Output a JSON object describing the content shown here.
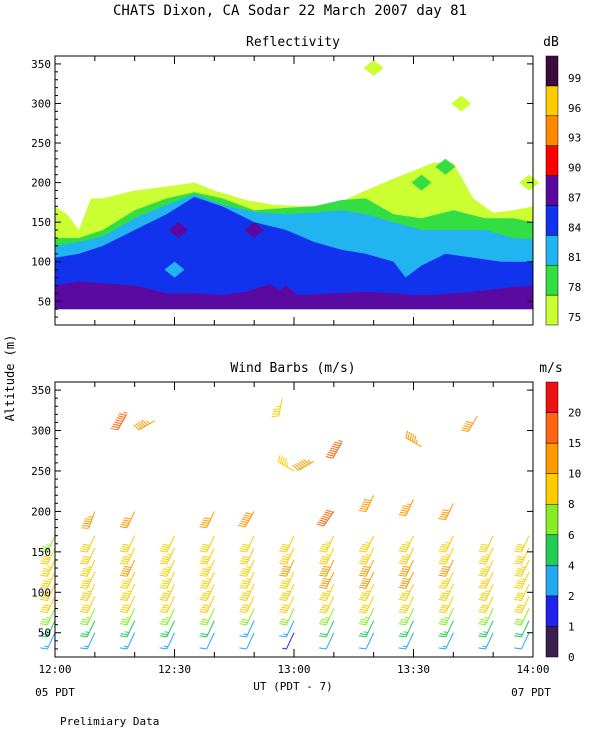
{
  "page": {
    "title": "CHATS Dixon, CA  Sodar  22 March 2007  day  81",
    "footnote": "Prelimiary Data"
  },
  "colors": {
    "background": "#ffffff",
    "axis": "#000000"
  },
  "chart_data": [
    {
      "type": "heatmap",
      "title": "Reflectivity",
      "xlabel": "UT  (PDT - 7)",
      "ylabel": "Altitude (m)",
      "xlim": [
        0,
        120
      ],
      "ylim": [
        20,
        360
      ],
      "x_tick_labels": [
        "12:00",
        "12:30",
        "13:00",
        "13:30",
        "14:00"
      ],
      "x_tick_minutes": [
        0,
        30,
        60,
        90,
        120
      ],
      "y_ticks": [
        50,
        100,
        150,
        200,
        250,
        300,
        350
      ],
      "colorbar": {
        "unit": "dB",
        "levels": [
          75,
          78,
          81,
          84,
          87,
          90,
          93,
          96,
          99
        ],
        "colors": [
          "#ccff33",
          "#33dd44",
          "#22b4f0",
          "#1133ee",
          "#5a0aa0",
          "#ff0000",
          "#ff8c00",
          "#ffcc00",
          "#3c0a3c"
        ]
      },
      "layers": [
        {
          "level": 75,
          "top_minutes": [
            0,
            3,
            6,
            9,
            12,
            20,
            28,
            35,
            40,
            48,
            55,
            62,
            70,
            78,
            85,
            90,
            95,
            100,
            105,
            110,
            115,
            120
          ],
          "top_altitude": [
            170,
            160,
            140,
            180,
            180,
            190,
            195,
            200,
            190,
            178,
            172,
            170,
            172,
            190,
            205,
            215,
            225,
            225,
            180,
            162,
            165,
            170
          ]
        },
        {
          "level": 78,
          "top_minutes": [
            0,
            6,
            12,
            20,
            28,
            35,
            42,
            50,
            58,
            65,
            72,
            78,
            85,
            92,
            100,
            108,
            115,
            120
          ],
          "top_altitude": [
            130,
            130,
            140,
            165,
            180,
            188,
            180,
            165,
            168,
            170,
            178,
            180,
            160,
            155,
            165,
            155,
            155,
            150
          ]
        },
        {
          "level": 81,
          "top_minutes": [
            0,
            6,
            12,
            20,
            28,
            35,
            42,
            50,
            58,
            65,
            72,
            78,
            85,
            92,
            100,
            108,
            115,
            120
          ],
          "top_altitude": [
            120,
            125,
            132,
            155,
            172,
            185,
            172,
            163,
            160,
            162,
            165,
            160,
            150,
            140,
            140,
            140,
            130,
            128
          ]
        },
        {
          "level": 84,
          "top_minutes": [
            0,
            6,
            12,
            20,
            28,
            35,
            42,
            50,
            58,
            65,
            72,
            78,
            85,
            88,
            92,
            98,
            105,
            112,
            120
          ],
          "top_altitude": [
            105,
            110,
            120,
            140,
            160,
            182,
            170,
            150,
            140,
            125,
            115,
            110,
            100,
            80,
            95,
            110,
            105,
            100,
            100
          ]
        },
        {
          "level": 87,
          "top_minutes": [
            0,
            6,
            14,
            20,
            28,
            35,
            42,
            48,
            54,
            58,
            62,
            70,
            78,
            85,
            90,
            95,
            100,
            105,
            110,
            115,
            120
          ],
          "top_altitude": [
            70,
            75,
            72,
            70,
            60,
            60,
            58,
            62,
            72,
            60,
            58,
            60,
            62,
            60,
            58,
            58,
            60,
            62,
            65,
            68,
            70
          ]
        }
      ],
      "small_patches": [
        {
          "level": 87,
          "center_minute": 31,
          "center_altitude": 140
        },
        {
          "level": 87,
          "center_minute": 50,
          "center_altitude": 140
        },
        {
          "level": 87,
          "center_minute": 58,
          "center_altitude": 60
        },
        {
          "level": 75,
          "center_minute": 80,
          "center_altitude": 345
        },
        {
          "level": 75,
          "center_minute": 102,
          "center_altitude": 300
        },
        {
          "level": 75,
          "center_minute": 119,
          "center_altitude": 200
        },
        {
          "level": 78,
          "center_minute": 92,
          "center_altitude": 200
        },
        {
          "level": 78,
          "center_minute": 98,
          "center_altitude": 220
        },
        {
          "level": 81,
          "center_minute": 30,
          "center_altitude": 90
        }
      ]
    },
    {
      "type": "scatter",
      "title": "Wind Barbs (m/s)",
      "xlabel": "UT  (PDT - 7)",
      "ylabel": "Altitude (m)",
      "xlim": [
        0,
        120
      ],
      "ylim": [
        20,
        360
      ],
      "x_tick_labels": [
        "12:00",
        "12:30",
        "13:00",
        "13:30",
        "14:00"
      ],
      "x_tick_minutes": [
        0,
        30,
        60,
        90,
        120
      ],
      "x_start_label": "05 PDT",
      "x_end_label": "07 PDT",
      "y_ticks": [
        50,
        100,
        150,
        200,
        250,
        300,
        350
      ],
      "colorbar": {
        "unit": "m/s",
        "levels": [
          0,
          1,
          2,
          4,
          6,
          8,
          10,
          15,
          20
        ],
        "colors": [
          "#3c1e50",
          "#2222ee",
          "#22aaf0",
          "#22cc55",
          "#88ee22",
          "#ffcc00",
          "#ff9900",
          "#ff6611",
          "#ee1111"
        ]
      },
      "profile_minutes": [
        0,
        10,
        20,
        30,
        40,
        50,
        60,
        70,
        80,
        90,
        100,
        110,
        119
      ],
      "profile_altitudes": [
        50,
        65,
        80,
        95,
        110,
        125,
        140,
        155,
        170
      ],
      "profile_direction_deg": 205,
      "profile_speed_ms": [
        [
          3,
          5,
          7,
          8,
          8,
          9,
          9,
          8,
          7
        ],
        [
          3,
          5,
          7,
          8,
          9,
          9,
          9,
          8,
          8
        ],
        [
          3,
          5,
          7,
          8,
          9,
          9,
          10,
          9,
          8
        ],
        [
          3,
          5,
          7,
          8,
          9,
          9,
          9,
          9,
          8
        ],
        [
          2,
          4,
          6,
          8,
          9,
          9,
          9,
          8,
          8
        ],
        [
          2,
          3,
          6,
          8,
          9,
          9,
          9,
          8,
          8
        ],
        [
          1,
          3,
          6,
          8,
          9,
          9,
          10,
          9,
          8
        ],
        [
          2,
          4,
          7,
          8,
          9,
          10,
          10,
          9,
          9
        ],
        [
          2,
          5,
          7,
          8,
          9,
          10,
          10,
          9,
          9
        ],
        [
          3,
          5,
          7,
          8,
          9,
          10,
          10,
          9,
          9
        ],
        [
          3,
          5,
          7,
          8,
          9,
          9,
          10,
          9,
          9
        ],
        [
          3,
          5,
          7,
          8,
          9,
          9,
          9,
          9,
          8
        ],
        [
          2,
          4,
          6,
          8,
          8,
          9,
          9,
          8,
          8
        ]
      ],
      "upper_barbs": [
        {
          "minute": 10,
          "altitude": 200,
          "speed": 11,
          "direction": 200
        },
        {
          "minute": 20,
          "altitude": 200,
          "speed": 10,
          "direction": 205
        },
        {
          "minute": 40,
          "altitude": 200,
          "speed": 10,
          "direction": 205
        },
        {
          "minute": 50,
          "altitude": 200,
          "speed": 14,
          "direction": 210
        },
        {
          "minute": 70,
          "altitude": 200,
          "speed": 16,
          "direction": 215
        },
        {
          "minute": 80,
          "altitude": 220,
          "speed": 12,
          "direction": 205
        },
        {
          "minute": 90,
          "altitude": 215,
          "speed": 11,
          "direction": 205
        },
        {
          "minute": 100,
          "altitude": 210,
          "speed": 10,
          "direction": 205
        },
        {
          "minute": 60,
          "altitude": 250,
          "speed": 9,
          "direction": 300
        },
        {
          "minute": 65,
          "altitude": 262,
          "speed": 13,
          "direction": 240
        },
        {
          "minute": 72,
          "altitude": 285,
          "speed": 17,
          "direction": 210
        },
        {
          "minute": 92,
          "altitude": 280,
          "speed": 11,
          "direction": 300
        },
        {
          "minute": 18,
          "altitude": 320,
          "speed": 19,
          "direction": 210
        },
        {
          "minute": 25,
          "altitude": 312,
          "speed": 11,
          "direction": 240
        },
        {
          "minute": 57,
          "altitude": 340,
          "speed": 9,
          "direction": 190
        },
        {
          "minute": 106,
          "altitude": 318,
          "speed": 10,
          "direction": 210
        }
      ]
    }
  ]
}
